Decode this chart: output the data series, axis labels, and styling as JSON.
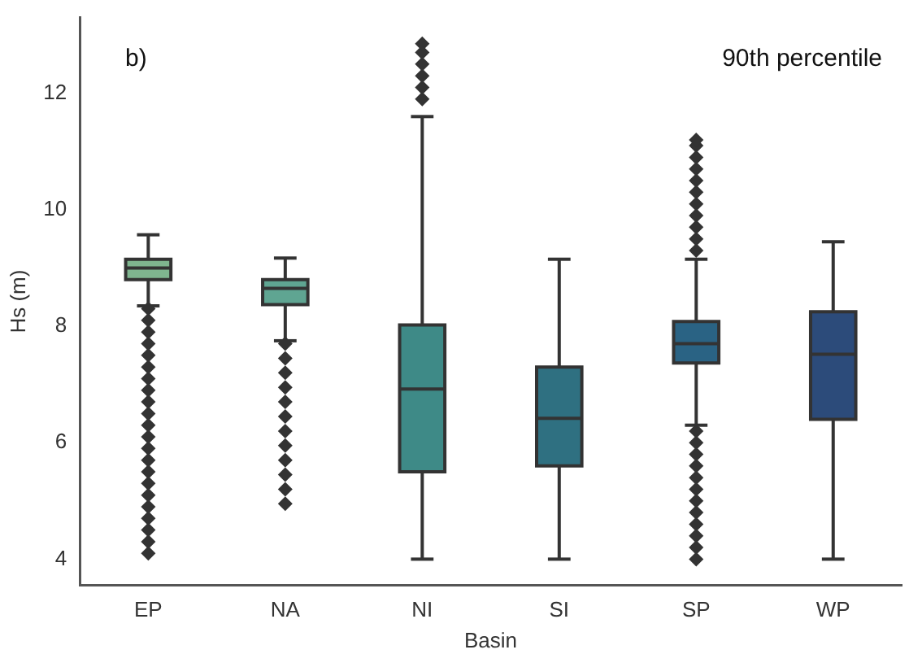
{
  "chart_data": {
    "type": "box",
    "xlabel": "Basin",
    "ylabel": "Hs (m)",
    "annotations": [
      "b)",
      "90th percentile"
    ],
    "categories": [
      "EP",
      "NA",
      "NI",
      "SI",
      "SP",
      "WP"
    ],
    "colors": [
      "#7fb58f",
      "#5fa592",
      "#3e8a87",
      "#2f7081",
      "#2a6384",
      "#2c4b7a"
    ],
    "ylim": [
      3.55,
      13.3
    ],
    "yticks": [
      4,
      6,
      8,
      10,
      12
    ],
    "marker": "diamond",
    "boxes": [
      {
        "low": 8.35,
        "q1": 8.8,
        "median": 9.0,
        "q3": 9.15,
        "high": 9.57,
        "outliers": [
          4.1,
          4.3,
          4.5,
          4.7,
          4.9,
          5.1,
          5.3,
          5.5,
          5.7,
          5.9,
          6.1,
          6.3,
          6.5,
          6.7,
          6.9,
          7.1,
          7.3,
          7.5,
          7.7,
          7.9,
          8.1,
          8.3
        ]
      },
      {
        "low": 7.75,
        "q1": 8.37,
        "median": 8.65,
        "q3": 8.8,
        "high": 9.17,
        "outliers": [
          4.95,
          5.2,
          5.45,
          5.7,
          5.95,
          6.2,
          6.45,
          6.7,
          6.95,
          7.2,
          7.45,
          7.7
        ]
      },
      {
        "low": 4.0,
        "q1": 5.5,
        "median": 6.92,
        "q3": 8.02,
        "high": 11.6,
        "outliers": [
          11.9,
          12.1,
          12.3,
          12.5,
          12.7,
          12.85
        ]
      },
      {
        "low": 4.0,
        "q1": 5.6,
        "median": 6.42,
        "q3": 7.3,
        "high": 9.15
      },
      {
        "low": 6.3,
        "q1": 7.37,
        "median": 7.7,
        "q3": 8.08,
        "high": 9.15,
        "outliers": [
          4.0,
          4.2,
          4.4,
          4.6,
          4.8,
          5.0,
          5.2,
          5.4,
          5.6,
          5.8,
          6.0,
          6.2,
          9.3,
          9.5,
          9.7,
          9.9,
          10.1,
          10.3,
          10.5,
          10.7,
          10.9,
          11.1,
          11.2
        ]
      },
      {
        "low": 4.0,
        "q1": 6.4,
        "median": 7.52,
        "q3": 8.25,
        "high": 9.45
      }
    ]
  }
}
